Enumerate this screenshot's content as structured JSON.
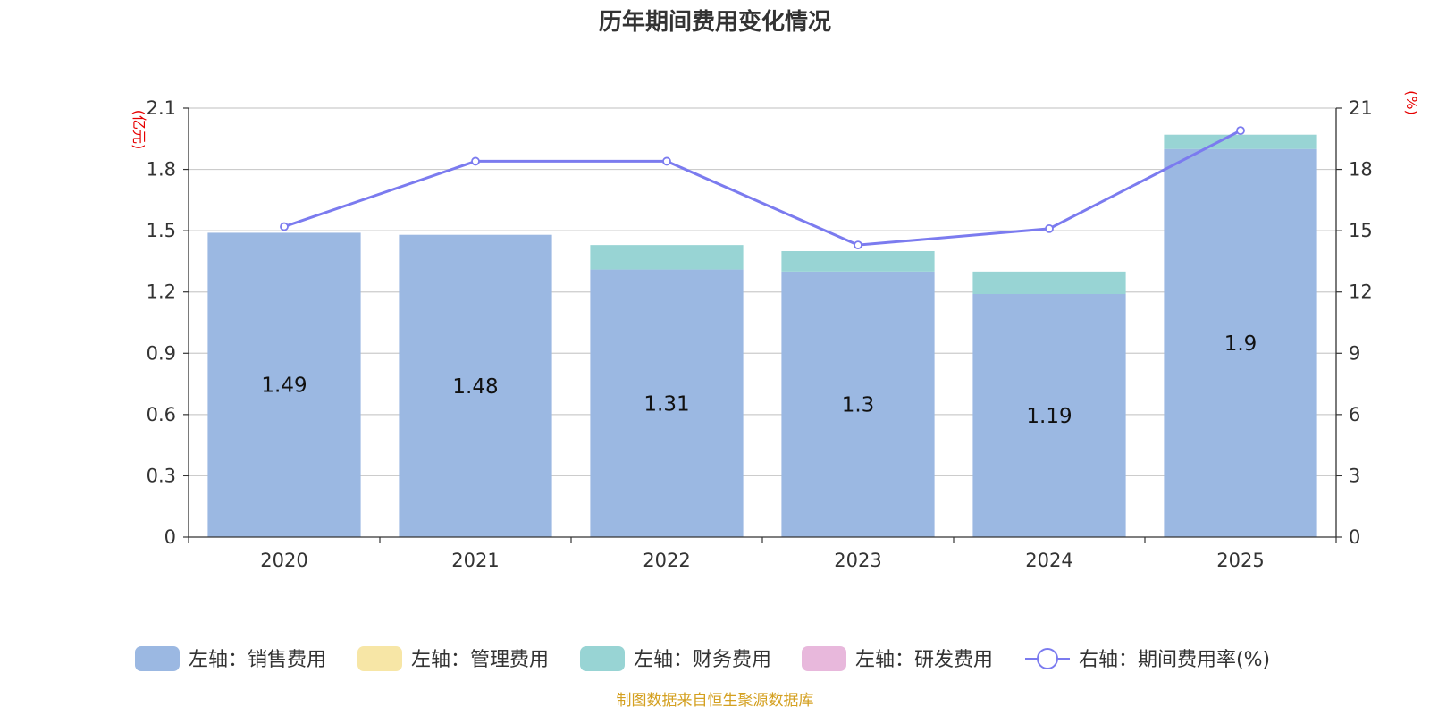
{
  "chart_data": {
    "type": "bar",
    "stacked": true,
    "title": "历年期间费用变化情况",
    "categories": [
      "2020",
      "2021",
      "2022",
      "2023",
      "2024",
      "2025"
    ],
    "left_axis": {
      "unit": "(亿元)",
      "min": 0,
      "max": 2.1,
      "ticks": [
        "0",
        "0.3",
        "0.6",
        "0.9",
        "1.2",
        "1.5",
        "1.8",
        "2.1"
      ]
    },
    "right_axis": {
      "unit": "(%)",
      "min": 0,
      "max": 21,
      "ticks": [
        "0",
        "3",
        "6",
        "9",
        "12",
        "15",
        "18",
        "21"
      ]
    },
    "series": [
      {
        "name": "左轴：销售费用",
        "axis": "left",
        "kind": "bar",
        "color": "#9bb8e2",
        "values": [
          1.49,
          1.48,
          1.31,
          1.3,
          1.19,
          1.9
        ],
        "labels": [
          "1.49",
          "1.48",
          "1.31",
          "1.3",
          "1.19",
          "1.9"
        ]
      },
      {
        "name": "左轴：管理费用",
        "axis": "left",
        "kind": "bar",
        "color": "#f7e6a6",
        "values": [
          0,
          0,
          0,
          0,
          0,
          0
        ]
      },
      {
        "name": "左轴：财务费用",
        "axis": "left",
        "kind": "bar",
        "color": "#98d4d4",
        "values": [
          0,
          0,
          0.12,
          0.1,
          0.11,
          0.07
        ]
      },
      {
        "name": "左轴：研发费用",
        "axis": "left",
        "kind": "bar",
        "color": "#e8b8dc",
        "values": [
          0,
          0,
          0,
          0,
          0,
          0
        ]
      },
      {
        "name": "右轴：期间费用率(%)",
        "axis": "right",
        "kind": "line",
        "color": "#7b7bef",
        "values": [
          15.2,
          18.4,
          18.4,
          14.3,
          15.1,
          19.9
        ]
      }
    ],
    "legend_position": "bottom",
    "grid": true
  },
  "source_note": "制图数据来自恒生聚源数据库"
}
